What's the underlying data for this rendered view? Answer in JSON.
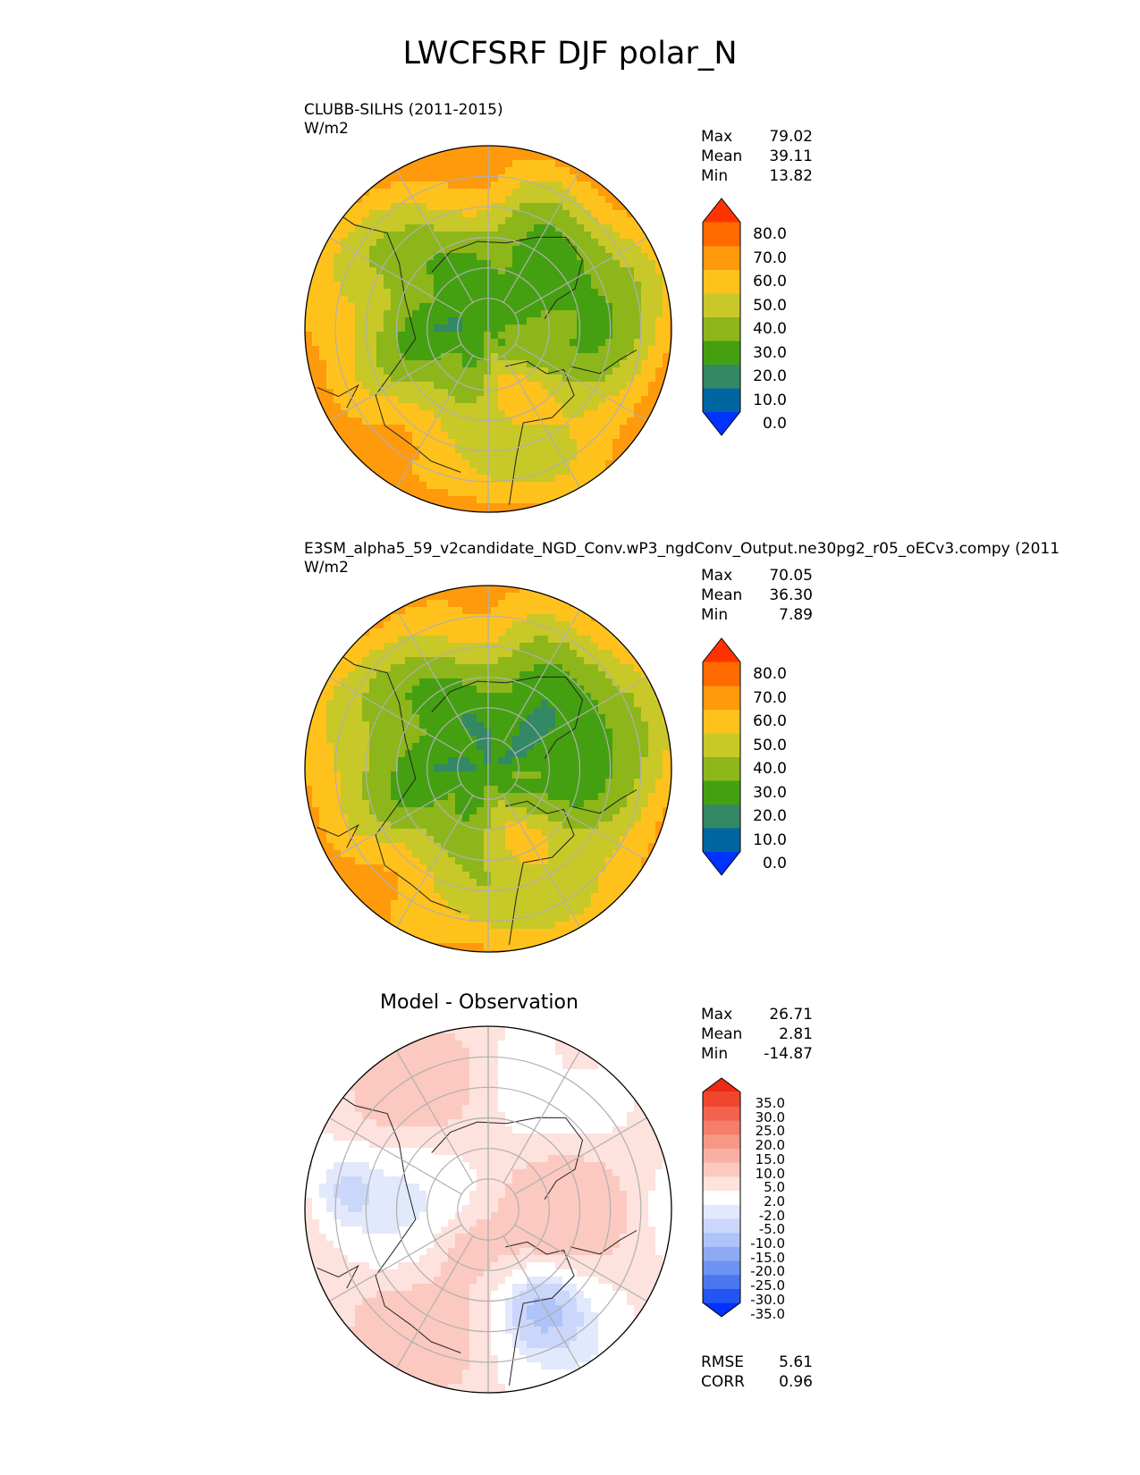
{
  "title": "LWCFSRF DJF polar_N",
  "panels": [
    {
      "title": "CLUBB-SILHS (2011-2015)",
      "units": "W/m2",
      "stats": {
        "max_label": "Max",
        "max": "79.02",
        "mean_label": "Mean",
        "mean": "39.11",
        "min_label": "Min",
        "min": "13.82"
      },
      "colorbar_ticks": [
        "80.0",
        "70.0",
        "60.0",
        "50.0",
        "40.0",
        "30.0",
        "20.0",
        "10.0",
        "0.0"
      ]
    },
    {
      "title": "E3SM_alpha5_59_v2candidate_NGD_Conv.wP3_ngdConv_Output.ne30pg2_r05_oECv3.compy (2011",
      "units": "W/m2",
      "stats": {
        "max_label": "Max",
        "max": "70.05",
        "mean_label": "Mean",
        "mean": "36.30",
        "min_label": "Min",
        "min": "7.89"
      },
      "colorbar_ticks": [
        "80.0",
        "70.0",
        "60.0",
        "50.0",
        "40.0",
        "30.0",
        "20.0",
        "10.0",
        "0.0"
      ]
    },
    {
      "title": "Model - Observation",
      "stats": {
        "max_label": "Max",
        "max": "26.71",
        "mean_label": "Mean",
        "mean": "2.81",
        "min_label": "Min",
        "min": "-14.87"
      },
      "colorbar_ticks": [
        "35.0",
        "30.0",
        "25.0",
        "20.0",
        "15.0",
        "10.0",
        "5.0",
        "2.0",
        "-2.0",
        "-5.0",
        "-10.0",
        "-15.0",
        "-20.0",
        "-25.0",
        "-30.0",
        "-35.0"
      ],
      "rmse_label": "RMSE",
      "rmse": "5.61",
      "corr_label": "CORR",
      "corr": "0.96"
    }
  ],
  "colors": {
    "seq_levels": [
      "#0033ff",
      "#0066a0",
      "#338866",
      "#44a011",
      "#8db61a",
      "#c8c828",
      "#ffc21c",
      "#ff9a0c",
      "#ff6a00",
      "#ff3300"
    ],
    "diff_levels": [
      "#0033ff",
      "#2255f2",
      "#4a77f0",
      "#6e92f2",
      "#8eaaf4",
      "#aec3f8",
      "#cad7fb",
      "#e2e9fd",
      "#ffffff",
      "#fde2de",
      "#fbc9c0",
      "#f9b0a4",
      "#f79886",
      "#f57e6a",
      "#f3624c",
      "#f0462e",
      "#ee2a12"
    ]
  },
  "chart_data": [
    {
      "type": "heatmap",
      "title": "CLUBB-SILHS (2011-2015)",
      "projection": "north-polar-stereographic",
      "units": "W/m2",
      "levels": [
        0,
        10,
        20,
        30,
        40,
        50,
        60,
        70,
        80
      ],
      "max": 79.02,
      "mean": 39.11,
      "min": 13.82
    },
    {
      "type": "heatmap",
      "title": "E3SM_alpha5_59_v2candidate_NGD_Conv.wP3_ngdConv_Output.ne30pg2_r05_oECv3.compy (2011",
      "projection": "north-polar-stereographic",
      "units": "W/m2",
      "levels": [
        0,
        10,
        20,
        30,
        40,
        50,
        60,
        70,
        80
      ],
      "max": 70.05,
      "mean": 36.3,
      "min": 7.89
    },
    {
      "type": "heatmap",
      "title": "Model - Observation",
      "projection": "north-polar-stereographic",
      "levels": [
        -35,
        -30,
        -25,
        -20,
        -15,
        -10,
        -5,
        -2,
        2,
        5,
        10,
        15,
        20,
        25,
        30,
        35
      ],
      "max": 26.71,
      "mean": 2.81,
      "min": -14.87,
      "rmse": 5.61,
      "corr": 0.96
    }
  ]
}
